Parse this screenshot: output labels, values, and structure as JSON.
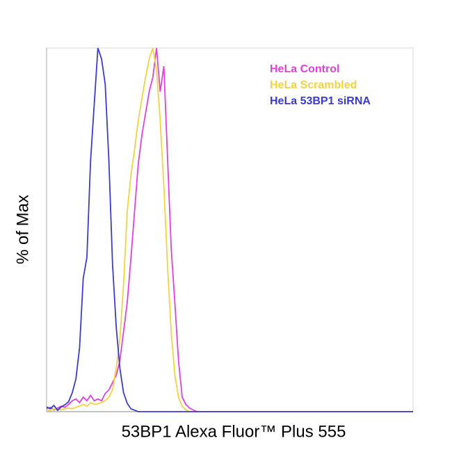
{
  "chart_data": {
    "type": "line",
    "ylabel": "% of Max",
    "xlabel": "53BP1 Alexa Fluor™ Plus 555",
    "x": [
      0,
      1,
      2,
      3,
      4,
      5,
      6,
      7,
      8,
      9,
      10,
      11,
      12,
      13,
      14,
      15,
      16,
      17,
      18,
      19,
      20,
      21,
      22,
      23,
      24,
      25,
      26,
      27,
      28,
      29,
      30,
      31,
      32,
      33,
      34,
      35,
      36,
      37,
      38,
      39,
      40,
      41,
      42,
      43,
      44,
      100
    ],
    "xlim": [
      0,
      100
    ],
    "ylim": [
      0,
      100
    ],
    "legend": "upper right",
    "series": [
      {
        "name": "HeLa Control",
        "color": "#e43ee0",
        "values": [
          0.8,
          1.2,
          0.5,
          1,
          1.5,
          1.2,
          2,
          3,
          3.5,
          2.5,
          4,
          3,
          4.5,
          3,
          3.5,
          3,
          5,
          6,
          8,
          10,
          14,
          22,
          30,
          42,
          55,
          68,
          76,
          82,
          88,
          92,
          100,
          88,
          95,
          70,
          45,
          30,
          14,
          4,
          2,
          1,
          0.5,
          0,
          0,
          0,
          0,
          0
        ]
      },
      {
        "name": "HeLa Scrambled",
        "color": "#f2d23e",
        "values": [
          0.5,
          0.3,
          0.8,
          0.4,
          0.6,
          0.8,
          1,
          0.8,
          1.2,
          1.5,
          2,
          1.5,
          2.5,
          2,
          2.2,
          2.5,
          3,
          4,
          6,
          12,
          20,
          35,
          55,
          65,
          72,
          80,
          86,
          92,
          97,
          100,
          94,
          80,
          62,
          40,
          22,
          10,
          4,
          1.5,
          0.5,
          0,
          0,
          0,
          0,
          0,
          0,
          0
        ]
      },
      {
        "name": "HeLa 53BP1 siRNA",
        "color": "#3a3ad2",
        "values": [
          1.3,
          0.8,
          1.7,
          0.4,
          1.3,
          1.9,
          2.7,
          5.2,
          9,
          17.6,
          36.7,
          42.4,
          69,
          84.5,
          100,
          97,
          90,
          69,
          40.5,
          23.3,
          11.9,
          5.2,
          2.3,
          0.8,
          0.4,
          0,
          0,
          0,
          0,
          0,
          0,
          0,
          0,
          0,
          0,
          0,
          0,
          0,
          0,
          0,
          0,
          0,
          0,
          0,
          0,
          0
        ]
      }
    ]
  }
}
